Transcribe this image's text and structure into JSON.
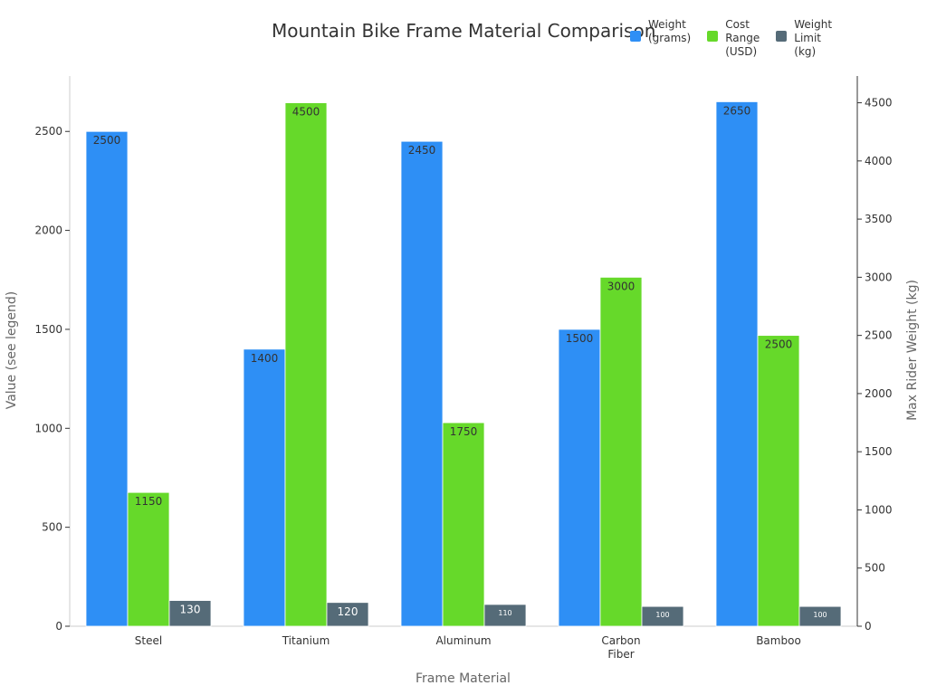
{
  "chart_data": {
    "type": "bar",
    "title": "Mountain Bike Frame Material Comparison",
    "xlabel": "Frame Material",
    "ylabel": "Value (see legend)",
    "y2label": "Max Rider Weight (kg)",
    "categories": [
      "Steel",
      "Titanium",
      "Aluminum",
      "Carbon\nFiber",
      "Bamboo"
    ],
    "ylim": [
      0,
      2780
    ],
    "y2lim": [
      0,
      4730
    ],
    "yticks": [
      0,
      500,
      1000,
      1500,
      2000,
      2500
    ],
    "y2ticks": [
      0,
      500,
      1000,
      1500,
      2000,
      2500,
      3000,
      3500,
      4000,
      4500
    ],
    "legend_position": "top-right",
    "series": [
      {
        "name": "Weight (grams)",
        "legend": "Weight\n(grams)",
        "axis": "left",
        "color": "#2e8ff5",
        "labelColor": "#333333",
        "values": [
          2500,
          1400,
          2450,
          1500,
          2650
        ]
      },
      {
        "name": "Cost Range (USD)",
        "legend": "Cost\nRange\n(USD)",
        "axis": "right",
        "color": "#66d92a",
        "labelColor": "#333333",
        "values": [
          1150,
          4500,
          1750,
          3000,
          2500
        ]
      },
      {
        "name": "Weight Limit (kg)",
        "legend": "Weight\nLimit\n(kg)",
        "axis": "left",
        "color": "#556b78",
        "labelColor": "#ffffff",
        "values": [
          130,
          120,
          110,
          100,
          100
        ]
      }
    ]
  }
}
